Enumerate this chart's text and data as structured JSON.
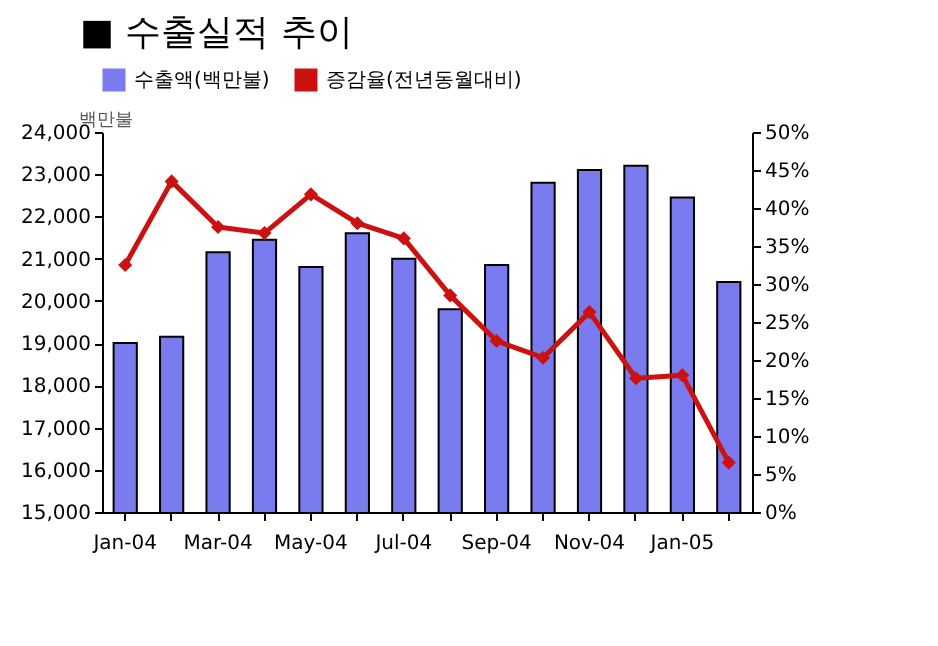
{
  "chart_data": {
    "type": "bar",
    "title": "■ 수출실적 추이",
    "ylabel": "백만불",
    "categories": [
      "Jan-04",
      null,
      "Mar-04",
      null,
      "May-04",
      null,
      "Jul-04",
      null,
      "Sep-04",
      null,
      "Nov-04",
      null,
      "Jan-05",
      null
    ],
    "series": [
      {
        "name": "수출액(백만불)",
        "color": "#7b7bf0",
        "values": [
          19000,
          19150,
          21150,
          21450,
          20800,
          21600,
          21000,
          19800,
          20850,
          22800,
          23100,
          23200,
          22450,
          20450
        ]
      },
      {
        "name": "증감율(전년동월대비)",
        "type": "line",
        "axis": "y2",
        "color": "#cc1111",
        "marker": "diamond",
        "values": [
          32.5,
          43.5,
          37.5,
          36.7,
          41.8,
          38.0,
          36.0,
          28.5,
          22.5,
          20.3,
          26.3,
          17.6,
          18.0,
          6.5
        ]
      }
    ],
    "ylim": [
      15000,
      24000
    ],
    "yticks": [
      {
        "value": 15000,
        "label": "15,000"
      },
      {
        "value": 16000,
        "label": "16,000"
      },
      {
        "value": 17000,
        "label": "17,000"
      },
      {
        "value": 18000,
        "label": "18,000"
      },
      {
        "value": 19000,
        "label": "19,000"
      },
      {
        "value": 20000,
        "label": "20,000"
      },
      {
        "value": 21000,
        "label": "21,000"
      },
      {
        "value": 22000,
        "label": "22,000"
      },
      {
        "value": 23000,
        "label": "23,000"
      },
      {
        "value": 24000,
        "label": "24,000"
      }
    ],
    "y2lim": [
      0,
      50
    ],
    "y2ticks": [
      {
        "value": 0,
        "label": "0%"
      },
      {
        "value": 5,
        "label": "5%"
      },
      {
        "value": 10,
        "label": "10%"
      },
      {
        "value": 15,
        "label": "15%"
      },
      {
        "value": 20,
        "label": "20%"
      },
      {
        "value": 25,
        "label": "25%"
      },
      {
        "value": 30,
        "label": "30%"
      },
      {
        "value": 35,
        "label": "35%"
      },
      {
        "value": 40,
        "label": "40%"
      },
      {
        "value": 45,
        "label": "45%"
      },
      {
        "value": 50,
        "label": "50%"
      }
    ],
    "grid": false,
    "legend": "top"
  }
}
